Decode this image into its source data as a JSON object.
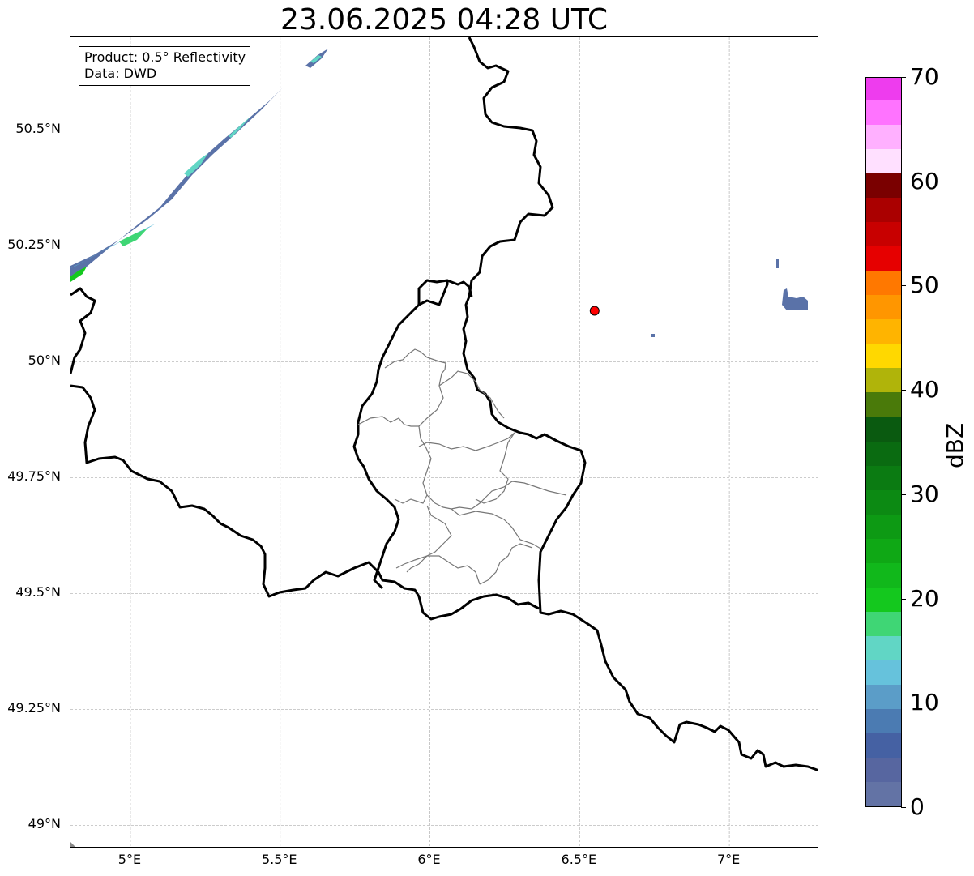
{
  "title": "23.06.2025 04:28 UTC",
  "info": {
    "line1": "Product: 0.5° Reflectivity",
    "line2": "Data: DWD"
  },
  "map": {
    "lon_range": [
      4.8,
      7.3
    ],
    "lat_range": [
      48.95,
      50.7
    ],
    "y_ticks": [
      {
        "lat": 50.5,
        "label": "50.5°N"
      },
      {
        "lat": 50.25,
        "label": "50.25°N"
      },
      {
        "lat": 50.0,
        "label": "50°N"
      },
      {
        "lat": 49.75,
        "label": "49.75°N"
      },
      {
        "lat": 49.5,
        "label": "49.5°N"
      },
      {
        "lat": 49.25,
        "label": "49.25°N"
      },
      {
        "lat": 49.0,
        "label": "49°N"
      }
    ],
    "x_ticks": [
      {
        "lon": 5.0,
        "label": "5°E"
      },
      {
        "lon": 5.5,
        "label": "5.5°E"
      },
      {
        "lon": 6.0,
        "label": "6°E"
      },
      {
        "lon": 6.5,
        "label": "6.5°E"
      },
      {
        "lon": 7.0,
        "label": "7°E"
      }
    ],
    "radar_site": {
      "lon": 6.55,
      "lat": 50.11,
      "color": "#ff0000"
    },
    "grid": true
  },
  "colorbar": {
    "unit": "dBZ",
    "min": 0,
    "max": 70,
    "ticks": [
      {
        "value": 0,
        "label": "0"
      },
      {
        "value": 10,
        "label": "10"
      },
      {
        "value": 20,
        "label": "20"
      },
      {
        "value": 30,
        "label": "30"
      },
      {
        "value": 40,
        "label": "40"
      },
      {
        "value": 50,
        "label": "50"
      },
      {
        "value": 60,
        "label": "60"
      },
      {
        "value": 70,
        "label": "70"
      }
    ],
    "colors": [
      "#6373a5",
      "#5766a0",
      "#4561a3",
      "#4b7bb2",
      "#5b9dc8",
      "#66c2dc",
      "#61d6c5",
      "#3fd675",
      "#14c81e",
      "#11b81b",
      "#0fa815",
      "#0d9a14",
      "#0c8a13",
      "#0b7b12",
      "#0a6b11",
      "#0a5a10",
      "#4a7a0a",
      "#b0b40a",
      "#ffd800",
      "#ffb400",
      "#ff9600",
      "#ff7800",
      "#e60000",
      "#c80000",
      "#aa0000",
      "#7a0000",
      "#ffe0ff",
      "#ffb0ff",
      "#ff73ff",
      "#ee3cee"
    ]
  }
}
